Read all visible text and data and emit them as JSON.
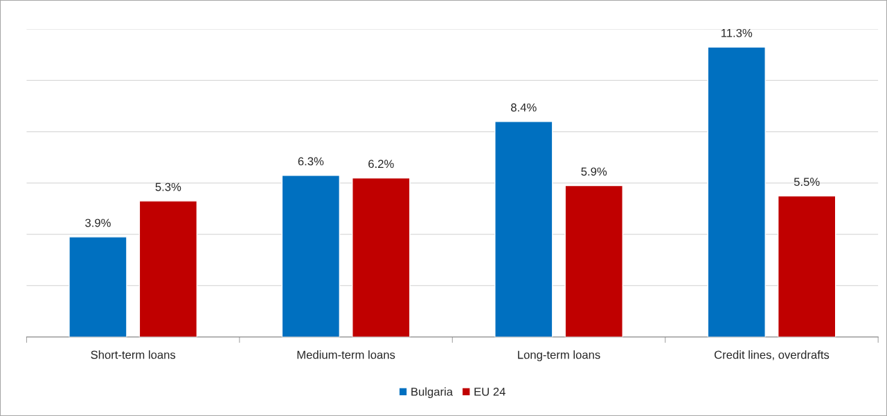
{
  "chart_data": {
    "type": "bar",
    "categories": [
      "Short-term loans",
      "Medium-term loans",
      "Long-term loans",
      "Credit lines, overdrafts"
    ],
    "series": [
      {
        "name": "Bulgaria",
        "color": "#0070c0",
        "values": [
          3.9,
          6.3,
          8.4,
          11.3
        ],
        "value_labels": [
          "3.9%",
          "6.3%",
          "8.4%",
          "11.3%"
        ]
      },
      {
        "name": "EU 24",
        "color": "#c00000",
        "values": [
          5.3,
          6.2,
          5.9,
          5.5
        ],
        "value_labels": [
          "5.3%",
          "6.2%",
          "5.9%",
          "5.5%"
        ]
      }
    ],
    "ylim": [
      0,
      12
    ],
    "yticks": [
      {
        "value": 0,
        "label": null
      },
      {
        "value": 2,
        "label": null
      },
      {
        "value": 4,
        "label": null
      },
      {
        "value": 6,
        "label": null
      },
      {
        "value": 8,
        "label": null
      },
      {
        "value": 10,
        "label": null
      },
      {
        "value": 12,
        "label": null
      }
    ],
    "tick_labels": "x",
    "grid": "y",
    "legend": "bottom"
  }
}
